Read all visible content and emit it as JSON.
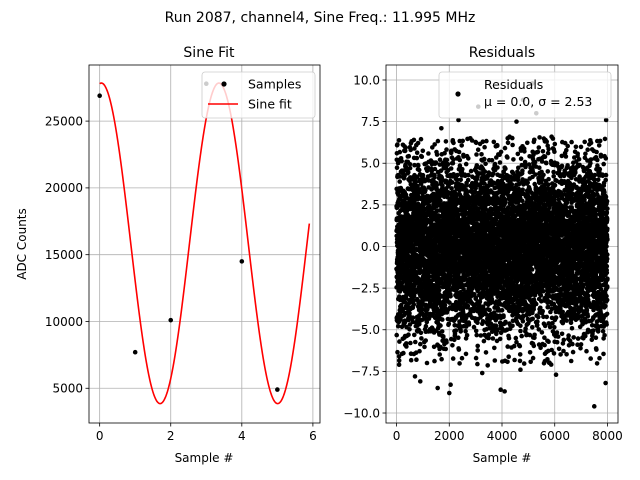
{
  "suptitle": "Run 2087, channel4, Sine Freq.: 11.995 MHz",
  "chart_data": [
    {
      "type": "line",
      "title": "Sine Fit",
      "xlabel": "Sample #",
      "ylabel": "ADC Counts",
      "xlim": [
        -0.3,
        6.2
      ],
      "ylim": [
        2400,
        29200
      ],
      "xticks": [
        0,
        2,
        4,
        6
      ],
      "xtick_labels": [
        "0",
        "2",
        "4",
        "6"
      ],
      "yticks": [
        5000,
        10000,
        15000,
        20000,
        25000
      ],
      "ytick_labels": [
        "5000",
        "10000",
        "15000",
        "20000",
        "25000"
      ],
      "grid": true,
      "legend": {
        "position": "upper-right",
        "entries": [
          "Samples",
          "Sine fit"
        ]
      },
      "samples": {
        "name": "Samples",
        "color": "#000000",
        "x": [
          0,
          1,
          2,
          3,
          4,
          5
        ],
        "y": [
          26900,
          7700,
          10100,
          27800,
          14500,
          4900
        ]
      },
      "fit": {
        "name": "Sine fit",
        "color": "#ff0000",
        "offset": 15850,
        "amplitude": 12000,
        "omega": 1.9,
        "phase": 1.48,
        "x_range": [
          0,
          5.9
        ]
      }
    },
    {
      "type": "scatter",
      "title": "Residuals",
      "xlabel": "Sample #",
      "ylabel": "",
      "xlim": [
        -400,
        8400
      ],
      "ylim": [
        -10.6,
        10.9
      ],
      "xticks": [
        0,
        2000,
        4000,
        6000,
        8000
      ],
      "xtick_labels": [
        "0",
        "2000",
        "4000",
        "6000",
        "8000"
      ],
      "yticks": [
        -10,
        -7.5,
        -5,
        -2.5,
        0,
        2.5,
        5,
        7.5,
        10
      ],
      "ytick_labels": [
        "−10.0",
        "−7.5",
        "−5.0",
        "−2.5",
        "0.0",
        "2.5",
        "5.0",
        "7.5",
        "10.0"
      ],
      "grid": true,
      "legend": {
        "position": "upper-right",
        "entries": [
          "Residuals",
          "μ = 0.0, σ = 2.53"
        ]
      },
      "series": {
        "name": "Residuals",
        "color": "#000000",
        "n_points": 8000,
        "mean": 0.0,
        "sigma": 2.53
      },
      "outliers": [
        {
          "x": 260,
          "y": -6.4
        },
        {
          "x": 700,
          "y": -7.8
        },
        {
          "x": 900,
          "y": -8.1
        },
        {
          "x": 1560,
          "y": -8.5
        },
        {
          "x": 2000,
          "y": -8.8
        },
        {
          "x": 2050,
          "y": -8.3
        },
        {
          "x": 3250,
          "y": -7.6
        },
        {
          "x": 3950,
          "y": -8.6
        },
        {
          "x": 4100,
          "y": -8.7
        },
        {
          "x": 4700,
          "y": -7.4
        },
        {
          "x": 6050,
          "y": -7.7
        },
        {
          "x": 7500,
          "y": -9.6
        },
        {
          "x": 7930,
          "y": -8.2
        },
        {
          "x": 2350,
          "y": 7.6
        },
        {
          "x": 3100,
          "y": 8.4
        },
        {
          "x": 4800,
          "y": 8.8
        },
        {
          "x": 5150,
          "y": 9.8
        },
        {
          "x": 7950,
          "y": 7.6
        },
        {
          "x": 4550,
          "y": 7.5
        },
        {
          "x": 5300,
          "y": 8.0
        },
        {
          "x": 1700,
          "y": 7.1
        }
      ]
    }
  ]
}
